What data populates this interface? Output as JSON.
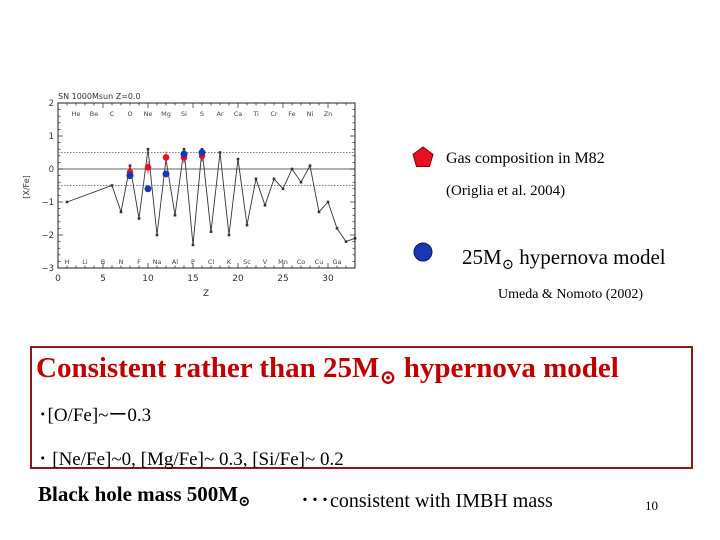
{
  "chart_data": {
    "type": "scatter",
    "title": "SN 1000Msun Z=0.0",
    "xlabel": "Z",
    "ylabel": "[X/Fe]",
    "xlim": [
      0,
      33
    ],
    "ylim": [
      -3,
      2
    ],
    "xticks": [
      0,
      5,
      10,
      15,
      20,
      25,
      30
    ],
    "yticks": [
      -3,
      -2,
      -1,
      0,
      1,
      2
    ],
    "elements_top": [
      {
        "label": "He",
        "z": 2
      },
      {
        "label": "Be",
        "z": 4
      },
      {
        "label": "C",
        "z": 6
      },
      {
        "label": "O",
        "z": 8
      },
      {
        "label": "Ne",
        "z": 10
      },
      {
        "label": "Mg",
        "z": 12
      },
      {
        "label": "Si",
        "z": 14
      },
      {
        "label": "S",
        "z": 16
      },
      {
        "label": "Ar",
        "z": 18
      },
      {
        "label": "Ca",
        "z": 20
      },
      {
        "label": "Ti",
        "z": 22
      },
      {
        "label": "Cr",
        "z": 24
      },
      {
        "label": "Fe",
        "z": 26
      },
      {
        "label": "Ni",
        "z": 28
      },
      {
        "label": "Zn",
        "z": 30
      }
    ],
    "elements_bottom": [
      {
        "label": "H",
        "z": 1
      },
      {
        "label": "Li",
        "z": 3
      },
      {
        "label": "B",
        "z": 5
      },
      {
        "label": "N",
        "z": 7
      },
      {
        "label": "F",
        "z": 9
      },
      {
        "label": "Na",
        "z": 11
      },
      {
        "label": "Al",
        "z": 13
      },
      {
        "label": "P",
        "z": 15
      },
      {
        "label": "Cl",
        "z": 17
      },
      {
        "label": "K",
        "z": 19
      },
      {
        "label": "Sc",
        "z": 21
      },
      {
        "label": "V",
        "z": 23
      },
      {
        "label": "Mn",
        "z": 25
      },
      {
        "label": "Co",
        "z": 27
      },
      {
        "label": "Cu",
        "z": 29
      },
      {
        "label": "Ga",
        "z": 31
      }
    ],
    "series": [
      {
        "x": [
          1,
          6,
          7,
          8,
          9,
          10,
          11,
          12,
          13,
          14,
          15,
          16,
          17,
          18,
          19,
          20,
          21,
          22,
          23,
          24,
          25,
          26,
          27,
          28,
          29,
          30,
          31,
          32,
          33
        ],
        "values": [
          -1.0,
          -0.5,
          -1.3,
          0.1,
          -1.5,
          0.6,
          -2.0,
          0.3,
          -1.4,
          0.6,
          -2.3,
          0.6,
          -1.9,
          0.5,
          -2.0,
          0.3,
          -1.7,
          -0.3,
          -1.1,
          -0.3,
          -0.6,
          0.0,
          -0.4,
          0.1,
          -1.3,
          -1.0,
          -1.8,
          -2.2,
          -2.1
        ]
      },
      {
        "x": [
          8,
          10,
          12,
          14,
          16
        ],
        "values": [
          -0.1,
          0.05,
          0.35,
          0.35,
          0.4
        ]
      },
      {
        "x": [
          8,
          10,
          12,
          14,
          16
        ],
        "values": [
          -0.2,
          -0.6,
          -0.15,
          0.45,
          0.5
        ]
      }
    ],
    "dotted_lines_y": [
      0.5,
      -0.5
    ]
  },
  "legend": {
    "red_line1": "Gas composition in M82",
    "red_line2": "(Origlia et al. 2004)",
    "blue_main": "25M",
    "blue_suffix": " hypernova model",
    "blue_ref": "Umeda & Nomoto (2002)",
    "red_color": "#e8111f",
    "blue_color": "#1a36b5"
  },
  "box": {
    "title_a": "Consistent rather than 25M",
    "title_b": " hypernova model",
    "bullet1": "･[O/Fe]~ー0.3",
    "bullet2": "･ [Ne/Fe]~0, [Mg/Fe]~ 0.3, [Si/Fe]~ 0.2",
    "border_color": "#8b1a1a",
    "title_color": "#c00000"
  },
  "footer": {
    "mass": "Black hole mass 500M",
    "note": "･･･consistent with IMBH mass"
  },
  "page_number": "10",
  "sun_symbol": "⊙"
}
